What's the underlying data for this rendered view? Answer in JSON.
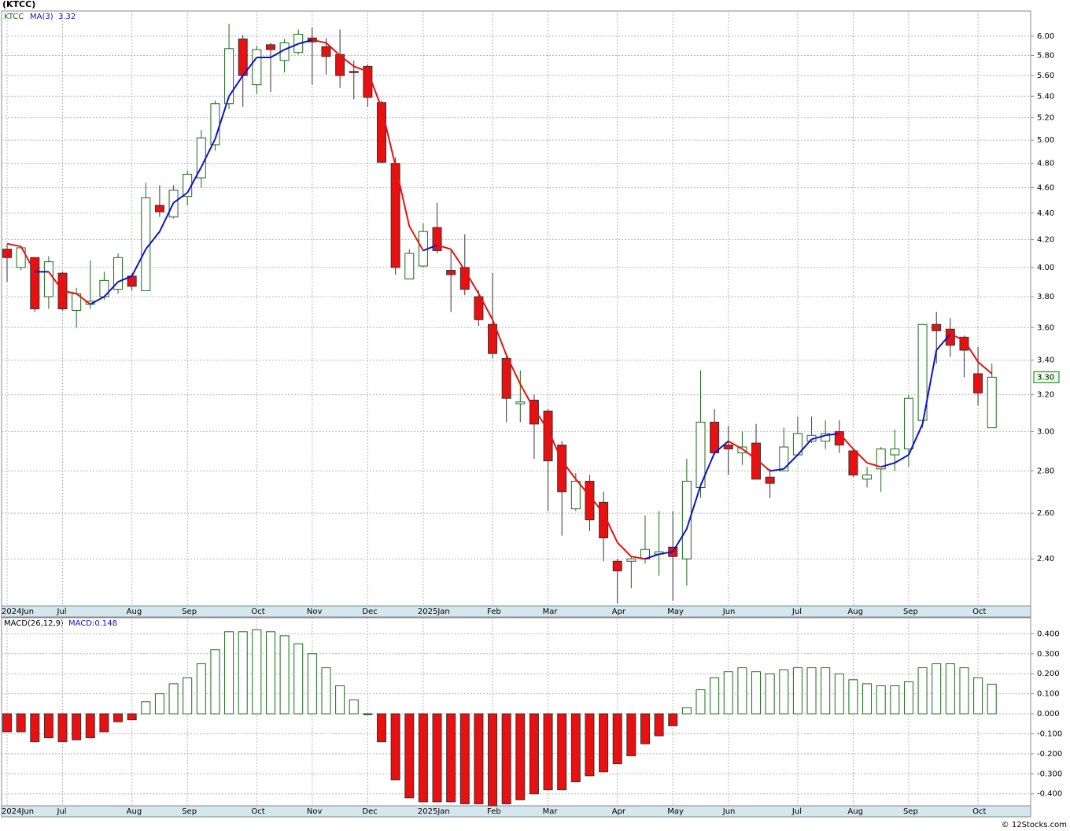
{
  "chart_data": [
    {
      "type": "candlestick",
      "title": "(KTCC)",
      "ticker": "KTCC",
      "log_scale": true,
      "grid": true,
      "categories": [
        "2024Jun",
        null,
        null,
        null,
        "Jul",
        null,
        null,
        null,
        null,
        "Aug",
        null,
        null,
        null,
        "Sep",
        null,
        null,
        null,
        null,
        "Oct",
        null,
        null,
        null,
        "Nov",
        null,
        null,
        null,
        "Dec",
        null,
        null,
        null,
        "2025Jan",
        null,
        null,
        null,
        null,
        "Feb",
        null,
        null,
        null,
        "Mar",
        null,
        null,
        null,
        null,
        "Apr",
        null,
        null,
        null,
        "May",
        null,
        null,
        null,
        "Jun",
        null,
        null,
        null,
        null,
        "Jul",
        null,
        null,
        null,
        "Aug",
        null,
        null,
        null,
        "Sep",
        null,
        null,
        null,
        null,
        "Oct",
        null
      ],
      "open": [
        4.13,
        4.0,
        4.07,
        3.8,
        3.96,
        3.71,
        3.75,
        3.8,
        3.85,
        3.94,
        3.84,
        4.46,
        4.37,
        4.53,
        4.68,
        4.96,
        5.33,
        5.97,
        5.51,
        5.91,
        5.75,
        5.83,
        5.98,
        5.89,
        5.81,
        5.64,
        5.69,
        5.34,
        4.8,
        3.92,
        4.01,
        4.29,
        3.98,
        4.0,
        3.8,
        3.62,
        3.41,
        3.15,
        3.17,
        3.11,
        2.93,
        2.62,
        2.75,
        2.65,
        2.39,
        2.39,
        2.4,
        2.42,
        2.45,
        2.4,
        2.72,
        3.05,
        2.93,
        2.89,
        2.94,
        2.77,
        2.8,
        2.88,
        2.95,
        2.95,
        3.0,
        2.9,
        2.76,
        2.81,
        2.88,
        2.91,
        3.06,
        3.62,
        3.59,
        3.54,
        3.32,
        3.02
      ],
      "high": [
        4.17,
        4.15,
        4.07,
        4.08,
        3.97,
        3.86,
        4.05,
        3.97,
        4.1,
        3.96,
        4.64,
        4.62,
        4.62,
        4.74,
        5.09,
        5.36,
        6.13,
        6.01,
        5.9,
        5.93,
        5.97,
        6.07,
        6.09,
        5.98,
        6.07,
        5.75,
        5.71,
        5.36,
        4.85,
        4.13,
        4.32,
        4.48,
        4.12,
        4.24,
        3.84,
        3.96,
        3.44,
        3.34,
        3.2,
        3.12,
        2.95,
        2.79,
        2.78,
        2.7,
        2.4,
        2.41,
        2.59,
        2.61,
        2.61,
        2.86,
        3.34,
        3.12,
        3.03,
        3.0,
        3.04,
        2.81,
        3.02,
        3.08,
        3.08,
        3.06,
        3.06,
        2.91,
        2.82,
        2.92,
        3.01,
        3.2,
        3.62,
        3.7,
        3.66,
        3.55,
        3.48,
        3.38
      ],
      "low": [
        3.9,
        3.98,
        3.7,
        3.72,
        3.71,
        3.6,
        3.72,
        3.78,
        3.82,
        3.84,
        3.84,
        4.37,
        4.36,
        4.46,
        4.6,
        4.91,
        5.28,
        5.3,
        5.42,
        5.44,
        5.63,
        5.81,
        5.51,
        5.61,
        5.48,
        5.37,
        5.3,
        4.8,
        3.95,
        3.92,
        4.0,
        4.1,
        3.7,
        3.81,
        3.61,
        3.41,
        3.05,
        3.05,
        2.86,
        2.61,
        2.5,
        2.61,
        2.52,
        2.39,
        2.22,
        2.28,
        2.38,
        2.33,
        2.23,
        2.29,
        2.67,
        2.88,
        2.78,
        2.83,
        2.76,
        2.67,
        2.8,
        2.88,
        2.94,
        2.91,
        2.89,
        2.77,
        2.72,
        2.7,
        2.8,
        2.82,
        3.02,
        3.38,
        3.42,
        3.3,
        3.14,
        3.02
      ],
      "close": [
        4.07,
        4.14,
        3.72,
        4.04,
        3.72,
        3.82,
        3.77,
        3.91,
        4.07,
        3.87,
        4.52,
        4.41,
        4.58,
        4.71,
        5.02,
        5.33,
        5.87,
        5.6,
        5.86,
        5.86,
        5.93,
        6.02,
        5.94,
        5.79,
        5.6,
        5.63,
        5.39,
        4.81,
        4.0,
        4.1,
        4.26,
        4.12,
        3.95,
        3.85,
        3.65,
        3.44,
        3.18,
        3.16,
        3.04,
        2.85,
        2.7,
        2.75,
        2.57,
        2.49,
        2.35,
        2.4,
        2.44,
        2.43,
        2.41,
        2.75,
        3.05,
        2.89,
        2.91,
        2.92,
        2.76,
        2.74,
        2.92,
        2.99,
        2.98,
        2.99,
        2.93,
        2.78,
        2.78,
        2.91,
        2.91,
        3.18,
        3.62,
        3.58,
        3.49,
        3.46,
        3.21,
        3.3
      ],
      "last_label": "3.30",
      "up_color": "#1a6b1a",
      "down_color": "#e81010",
      "ma": {
        "name": "MA(3)",
        "value_label": "3.32",
        "rising_color": "#1010cc",
        "falling_color": "#e81010",
        "values": [
          4.17,
          4.15,
          3.97,
          3.97,
          3.84,
          3.82,
          3.75,
          3.8,
          3.9,
          3.94,
          4.13,
          4.26,
          4.48,
          4.56,
          4.77,
          5.01,
          5.4,
          5.6,
          5.78,
          5.78,
          5.86,
          5.92,
          5.96,
          5.93,
          5.8,
          5.69,
          5.64,
          5.29,
          4.78,
          4.3,
          4.12,
          4.16,
          4.13,
          3.98,
          3.82,
          3.65,
          3.43,
          3.26,
          3.12,
          3.01,
          2.85,
          2.76,
          2.68,
          2.6,
          2.47,
          2.41,
          2.4,
          2.42,
          2.43,
          2.53,
          2.73,
          2.89,
          2.95,
          2.91,
          2.86,
          2.8,
          2.81,
          2.88,
          2.96,
          2.98,
          2.99,
          2.91,
          2.84,
          2.82,
          2.84,
          2.88,
          3.04,
          3.46,
          3.56,
          3.52,
          3.39,
          3.32
        ]
      },
      "ylim": [
        2.21,
        6.27
      ],
      "yticks": [
        {
          "value": 2.4,
          "label": "2.40"
        },
        {
          "value": 2.6,
          "label": "2.60"
        },
        {
          "value": 2.8,
          "label": "2.80"
        },
        {
          "value": 3.0,
          "label": "3.00"
        },
        {
          "value": 3.2,
          "label": "3.20"
        },
        {
          "value": 3.4,
          "label": "3.40"
        },
        {
          "value": 3.6,
          "label": "3.60"
        },
        {
          "value": 3.8,
          "label": "3.80"
        },
        {
          "value": 4.0,
          "label": "4.00"
        },
        {
          "value": 4.2,
          "label": "4.20"
        },
        {
          "value": 4.4,
          "label": "4.40"
        },
        {
          "value": 4.6,
          "label": "4.60"
        },
        {
          "value": 4.8,
          "label": "4.80"
        },
        {
          "value": 5.0,
          "label": "5.00"
        },
        {
          "value": 5.2,
          "label": "5.20"
        },
        {
          "value": 5.4,
          "label": "5.40"
        },
        {
          "value": 5.6,
          "label": "5.60"
        },
        {
          "value": 5.8,
          "label": "5.80"
        },
        {
          "value": 6.0,
          "label": "6.00"
        }
      ]
    },
    {
      "type": "bar",
      "title": "MACD(26,12,9)",
      "current_label": "MACD:0.148",
      "grid": true,
      "categories": [
        "2024Jun",
        null,
        null,
        null,
        "Jul",
        null,
        null,
        null,
        null,
        "Aug",
        null,
        null,
        null,
        "Sep",
        null,
        null,
        null,
        null,
        "Oct",
        null,
        null,
        null,
        "Nov",
        null,
        null,
        null,
        "Dec",
        null,
        null,
        null,
        "2025Jan",
        null,
        null,
        null,
        null,
        "Feb",
        null,
        null,
        null,
        "Mar",
        null,
        null,
        null,
        null,
        "Apr",
        null,
        null,
        null,
        "May",
        null,
        null,
        null,
        "Jun",
        null,
        null,
        null,
        null,
        "Jul",
        null,
        null,
        null,
        "Aug",
        null,
        null,
        null,
        "Sep",
        null,
        null,
        null,
        null,
        "Oct",
        null
      ],
      "values": [
        -0.09,
        -0.09,
        -0.14,
        -0.12,
        -0.14,
        -0.13,
        -0.12,
        -0.09,
        -0.04,
        -0.03,
        0.06,
        0.1,
        0.15,
        0.18,
        0.25,
        0.32,
        0.41,
        0.41,
        0.42,
        0.41,
        0.39,
        0.35,
        0.3,
        0.23,
        0.14,
        0.07,
        -0.003,
        -0.14,
        -0.33,
        -0.42,
        -0.44,
        -0.44,
        -0.44,
        -0.45,
        -0.45,
        -0.46,
        -0.45,
        -0.43,
        -0.4,
        -0.38,
        -0.38,
        -0.34,
        -0.31,
        -0.29,
        -0.25,
        -0.21,
        -0.15,
        -0.11,
        -0.06,
        0.03,
        0.12,
        0.18,
        0.21,
        0.23,
        0.21,
        0.2,
        0.22,
        0.23,
        0.23,
        0.23,
        0.2,
        0.17,
        0.15,
        0.14,
        0.14,
        0.16,
        0.23,
        0.25,
        0.25,
        0.23,
        0.18,
        0.148
      ],
      "positive_color": "#1a6b1a",
      "negative_color": "#e81010",
      "ylim": [
        -0.46,
        0.48
      ],
      "yticks": [
        {
          "value": -0.4,
          "label": "-0.400"
        },
        {
          "value": -0.3,
          "label": "-0.300"
        },
        {
          "value": -0.2,
          "label": "-0.200"
        },
        {
          "value": -0.1,
          "label": "-0.100"
        },
        {
          "value": 0,
          "label": "0.000"
        },
        {
          "value": 0.1,
          "label": "0.100"
        },
        {
          "value": 0.2,
          "label": "0.200"
        },
        {
          "value": 0.3,
          "label": "0.300"
        },
        {
          "value": 0.4,
          "label": "0.400"
        }
      ]
    }
  ],
  "footer": "© 12Stocks.com"
}
